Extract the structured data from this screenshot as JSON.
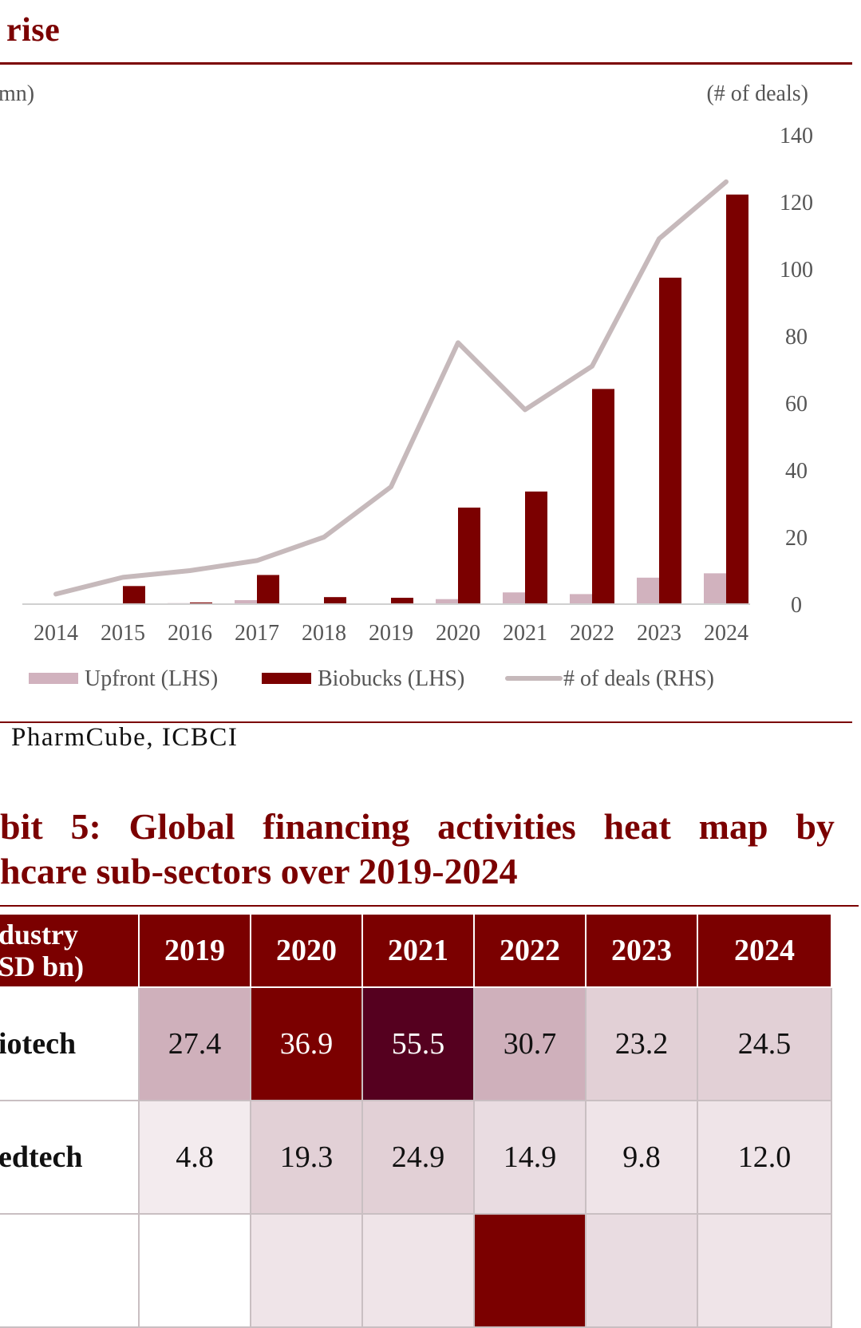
{
  "exhibit4": {
    "title_fragment": "rise",
    "source": "PharmCube, ICBCI"
  },
  "chart_data": {
    "type": "bar",
    "left_axis_label": "mn)",
    "right_axis_label": "(# of deals)",
    "categories": [
      "2014",
      "2015",
      "2016",
      "2017",
      "2018",
      "2019",
      "2020",
      "2021",
      "2022",
      "2023",
      "2024"
    ],
    "series": [
      {
        "name": "Upfront (LHS)",
        "type": "bar",
        "axis": "left",
        "color": "#d1b2be",
        "values": [
          0.1,
          0.2,
          0.3,
          1.2,
          0.2,
          0.2,
          1.5,
          3.5,
          3.0,
          7.9,
          9.2
        ]
      },
      {
        "name": "Biobucks (LHS)",
        "type": "bar",
        "axis": "left",
        "color": "#7b0000",
        "values": [
          0.1,
          5.4,
          0.5,
          8.7,
          2.1,
          1.9,
          28.8,
          33.6,
          64.2,
          97.4,
          122.2
        ]
      },
      {
        "name": "# of deals (RHS)",
        "type": "line",
        "axis": "right",
        "color": "#c6b9bb",
        "values": [
          3,
          8,
          10,
          13,
          20,
          35,
          78,
          58,
          71,
          109,
          126
        ]
      }
    ],
    "right_axis": {
      "min": 0,
      "max": 140,
      "ticks": [
        0,
        20,
        40,
        60,
        80,
        100,
        120,
        140
      ]
    },
    "left_axis": {
      "min": 0,
      "max": 140
    },
    "legend_position": "bottom",
    "grid": false
  },
  "exhibit5": {
    "title_line1": [
      "bit",
      "5:",
      "Global",
      "financing",
      "activities",
      "heat",
      "map",
      "by"
    ],
    "title_line2": "hcare sub-sectors over 2019-2024",
    "header": {
      "industry_line1": "dustry",
      "industry_line2": "SD bn)",
      "years": [
        "2019",
        "2020",
        "2021",
        "2022",
        "2023",
        "2024"
      ]
    },
    "rows": [
      {
        "label": "iotech",
        "values": [
          "27.4",
          "36.9",
          "55.5",
          "30.7",
          "23.2",
          "24.5"
        ],
        "colors": [
          "#cfb0bb",
          "#7b0000",
          "#55001f",
          "#cfb0bb",
          "#e2d0d6",
          "#e2d0d6"
        ],
        "text_colors": [
          "#111111",
          "#ffffff",
          "#ffffff",
          "#111111",
          "#111111",
          "#111111"
        ]
      },
      {
        "label": "edtech",
        "values": [
          "4.8",
          "19.3",
          "24.9",
          "14.9",
          "9.8",
          "12.0"
        ],
        "colors": [
          "#f3ebee",
          "#e2d0d6",
          "#e2d0d6",
          "#e9dce1",
          "#efe4e8",
          "#efe4e8"
        ],
        "text_colors": [
          "#111111",
          "#111111",
          "#111111",
          "#111111",
          "#111111",
          "#111111"
        ]
      },
      {
        "label": "",
        "values": [
          "",
          "",
          "",
          "",
          "",
          ""
        ],
        "colors": [
          "#ffffff",
          "#efe4e8",
          "#efe4e8",
          "#7b0000",
          "#e9dce1",
          "#efe4e8"
        ],
        "text_colors": [
          "#111111",
          "#111111",
          "#111111",
          "#111111",
          "#111111",
          "#111111"
        ]
      }
    ]
  }
}
